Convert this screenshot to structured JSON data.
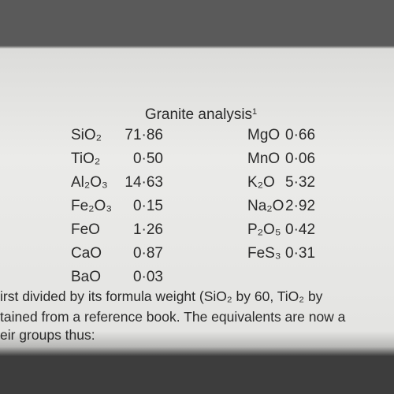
{
  "title": "Granite analysis",
  "title_note": "1",
  "table": {
    "left": [
      [
        "SiO₂",
        "71·86"
      ],
      [
        "TiO₂",
        "0·50"
      ],
      [
        "Al₂O₃",
        "14·63"
      ],
      [
        "Fe₂O₃",
        "0·15"
      ],
      [
        "FeO",
        "1·26"
      ],
      [
        "CaO",
        "0·87"
      ],
      [
        "BaO",
        "0·03"
      ]
    ],
    "right": [
      [
        "MgO",
        "0·66"
      ],
      [
        "MnO",
        "0·06"
      ],
      [
        "K₂O",
        "5·32"
      ],
      [
        "Na₂O",
        "2·92"
      ],
      [
        "P₂O₅",
        "0·42"
      ],
      [
        "FeS₃",
        "0·31"
      ]
    ]
  },
  "body": [
    "irst divided by its formula weight (SiO₂ by 60, TiO₂ by",
    "tained from a reference book. The equivalents are now a",
    "eir groups thus:"
  ]
}
